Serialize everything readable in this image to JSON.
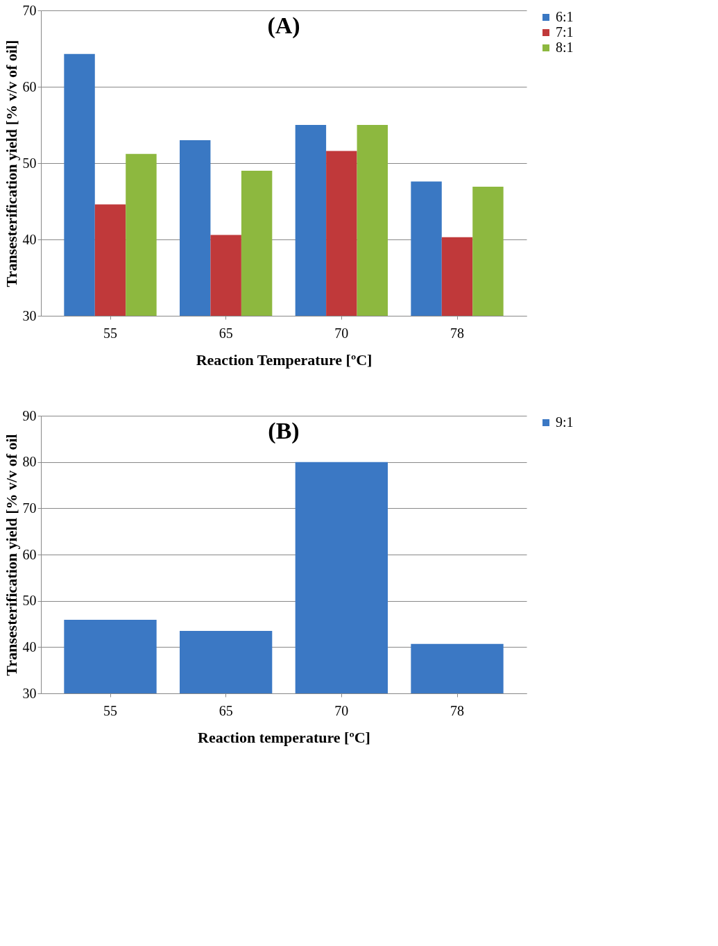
{
  "chart_data": [
    {
      "type": "bar",
      "title": "(A)",
      "xlabel": "Reaction Temperature [ºC]",
      "ylabel": "Transesterification yield [% v/v of oil]",
      "categories": [
        "55",
        "65",
        "70",
        "78"
      ],
      "series": [
        {
          "name": "6:1",
          "color": "#3a78c3",
          "values": [
            64.3,
            53.0,
            55.0,
            47.6
          ]
        },
        {
          "name": "7:1",
          "color": "#c0393a",
          "values": [
            44.6,
            40.6,
            51.6,
            40.3
          ]
        },
        {
          "name": "8:1",
          "color": "#8db83f",
          "values": [
            51.2,
            49.0,
            55.0,
            46.9
          ]
        }
      ],
      "ylim": [
        30,
        70
      ],
      "yticks": [
        30,
        40,
        50,
        60,
        70
      ],
      "grid": "y",
      "legend": "right"
    },
    {
      "type": "bar",
      "title": "(B)",
      "xlabel": "Reaction temperature [ºC]",
      "ylabel": "Transesterification yield [% v/v of oil",
      "categories": [
        "55",
        "65",
        "70",
        "78"
      ],
      "series": [
        {
          "name": "9:1",
          "color": "#3b78c4",
          "values": [
            45.9,
            43.5,
            80.0,
            40.7
          ]
        }
      ],
      "ylim": [
        30,
        90
      ],
      "yticks": [
        30,
        40,
        50,
        60,
        70,
        80,
        90
      ],
      "grid": "y",
      "legend": "right"
    }
  ]
}
